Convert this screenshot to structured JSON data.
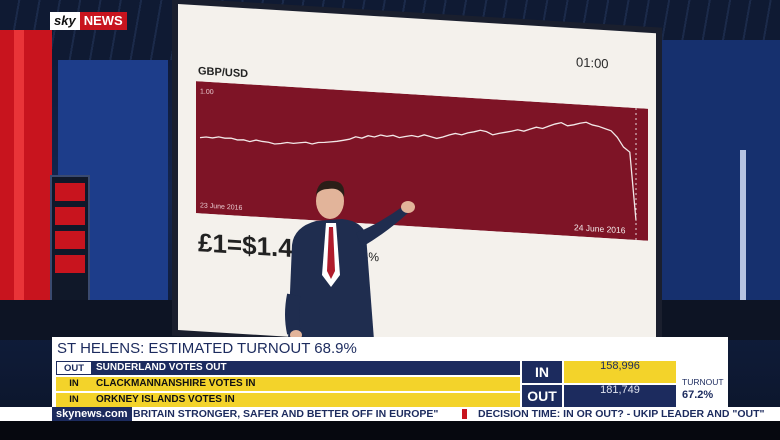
{
  "branding": {
    "sky": "sky",
    "news": "NEWS"
  },
  "screen": {
    "title": "GBP/USD",
    "time_label": "01:00",
    "chart_tick": "1.00",
    "start_date": "23 June 2016",
    "end_date": "24 June 2016",
    "rate_text": "£1=$1.44",
    "change_text": "...96%"
  },
  "chart_data": {
    "type": "line",
    "title": "GBP/USD",
    "x_range": [
      "23 June 2016",
      "24 June 2016"
    ],
    "ylabel": "",
    "values": [
      1.47,
      1.472,
      1.471,
      1.474,
      1.472,
      1.473,
      1.47,
      1.471,
      1.468,
      1.472,
      1.47,
      1.469,
      1.466,
      1.468,
      1.471,
      1.47,
      1.472,
      1.474,
      1.471,
      1.475,
      1.476,
      1.478,
      1.48,
      1.483,
      1.486,
      1.492,
      1.49,
      1.496,
      1.494,
      1.499,
      1.497,
      1.5,
      1.496,
      1.499,
      1.502,
      1.5,
      1.505,
      1.502,
      1.499,
      1.503,
      1.508,
      1.512,
      1.51,
      1.515,
      1.518,
      1.522,
      1.52,
      1.514,
      1.518,
      1.521,
      1.524,
      1.528,
      1.526,
      1.531,
      1.536,
      1.534,
      1.54,
      1.545,
      1.549,
      1.543,
      1.546,
      1.55,
      1.553,
      1.548,
      1.546,
      1.542,
      1.538,
      1.525,
      1.505,
      1.495,
      1.35
    ],
    "background": "#7e1426",
    "line_color": "#f2e7e7"
  },
  "lower_third": {
    "headline": "ST HELENS: ESTIMATED TURNOUT 68.9%",
    "rows": [
      {
        "tag": "OUT",
        "text": "SUNDERLAND VOTES OUT",
        "style": "out"
      },
      {
        "tag": "IN",
        "text": "CLACKMANNANSHIRE VOTES IN",
        "style": "in"
      },
      {
        "tag": "IN",
        "text": "ORKNEY ISLANDS VOTES IN",
        "style": "in"
      }
    ],
    "in_label": "IN",
    "in_value": "158,996",
    "out_label": "OUT",
    "out_value": "181,749",
    "turnout_label": "TURNOUT",
    "turnout_value": "67.2%"
  },
  "ticker": {
    "site": "skynews.com",
    "item1": "BRITAIN STRONGER, SAFER AND BETTER OFF IN EUROPE\"",
    "item2": "DECISION TIME: IN OR OUT? - UKIP LEADER AND \"OUT\""
  },
  "colors": {
    "brand_red": "#c8141e",
    "navy": "#1c2b5e",
    "yellow": "#f3d32a"
  }
}
